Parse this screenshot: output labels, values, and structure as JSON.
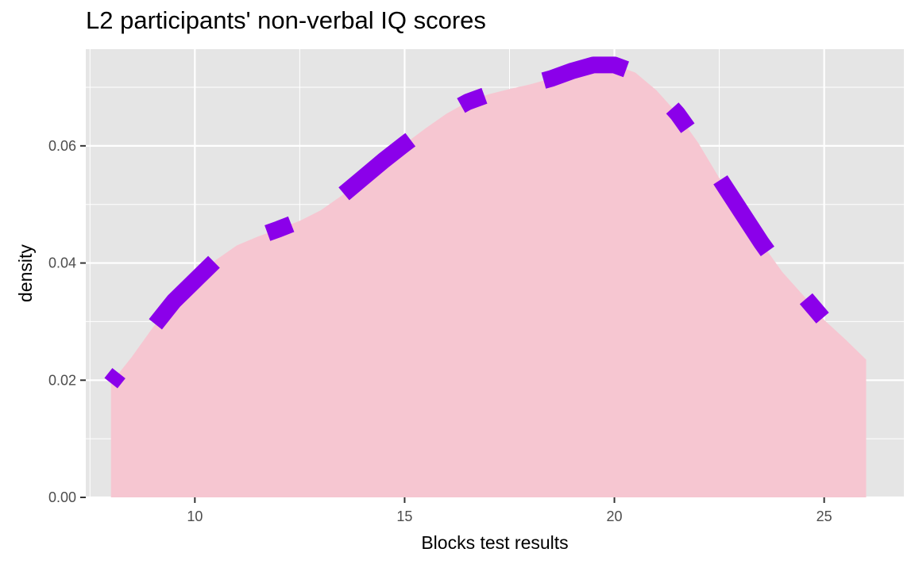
{
  "chart_data": {
    "type": "area",
    "title": "L2 participants' non-verbal IQ scores",
    "xlabel": "Blocks test results",
    "ylabel": "density",
    "xlim": [
      7.4,
      26.9
    ],
    "ylim": [
      0,
      0.0765
    ],
    "x_ticks": [
      10,
      15,
      20,
      25
    ],
    "y_ticks": [
      0.0,
      0.02,
      0.04,
      0.06
    ],
    "y_tick_labels": [
      "0.00",
      "0.02",
      "0.04",
      "0.06"
    ],
    "grid": true,
    "series": [
      {
        "x": [
          8.0,
          8.5,
          9.0,
          9.5,
          10.0,
          10.5,
          11.0,
          11.5,
          12.0,
          12.5,
          13.0,
          13.5,
          14.0,
          14.5,
          15.0,
          15.5,
          16.0,
          16.5,
          17.0,
          17.5,
          18.0,
          18.5,
          19.0,
          19.5,
          20.0,
          20.5,
          21.0,
          21.5,
          22.0,
          22.5,
          23.0,
          23.5,
          24.0,
          24.5,
          25.0,
          25.5,
          26.0
        ],
        "y": [
          0.0195,
          0.024,
          0.029,
          0.0335,
          0.037,
          0.0405,
          0.043,
          0.0445,
          0.0458,
          0.0472,
          0.049,
          0.0515,
          0.0545,
          0.0575,
          0.0603,
          0.063,
          0.0655,
          0.0675,
          0.0688,
          0.0697,
          0.0705,
          0.0715,
          0.0728,
          0.0738,
          0.0738,
          0.0725,
          0.0695,
          0.0655,
          0.0605,
          0.0545,
          0.049,
          0.0435,
          0.0385,
          0.0345,
          0.0303,
          0.027,
          0.0235
        ],
        "fill_color": "#f6c6d1",
        "line_color": "#8b00ea"
      }
    ],
    "colors": {
      "panel": "#e5e5e5",
      "grid": "#ffffff",
      "fill": "#f6c6d1",
      "line": "#8b00ea",
      "tick_text": "#4d4d4d"
    }
  }
}
